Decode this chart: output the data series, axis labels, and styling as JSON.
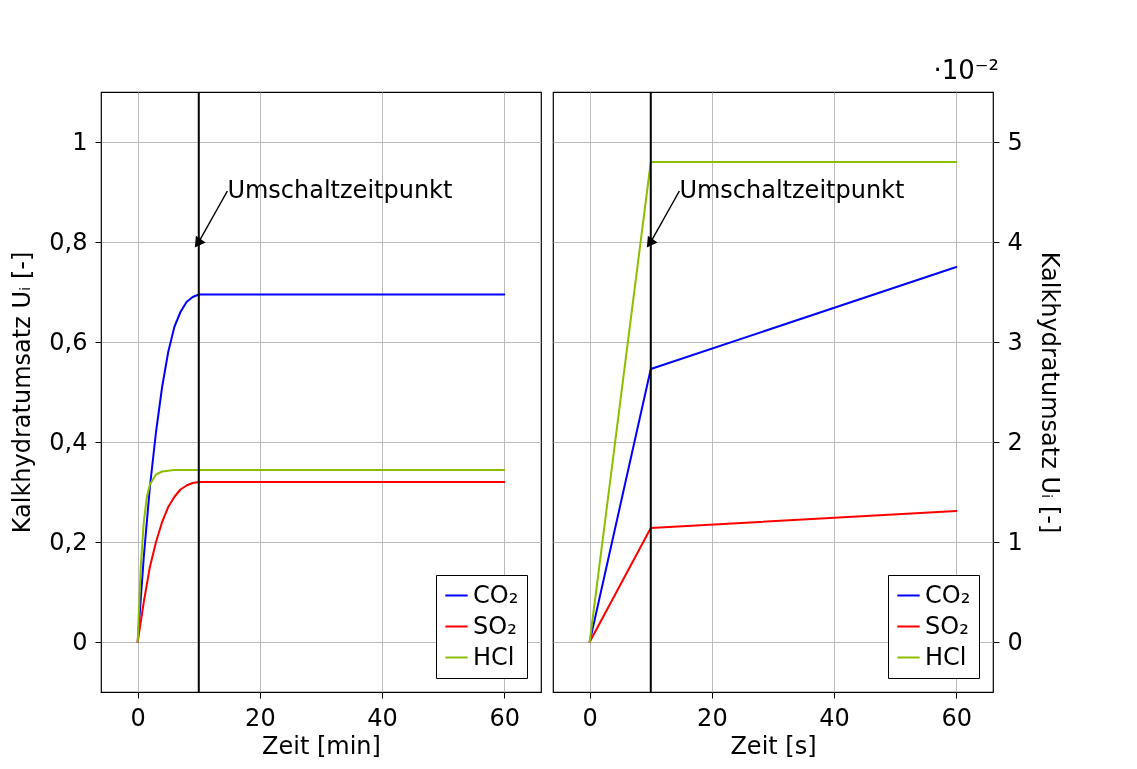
{
  "chart_data": [
    {
      "type": "line",
      "xlabel": "Zeit [min]",
      "ylabel": "Kalkhydratumsatz Uᵢ [-]",
      "xlim": [
        -6,
        66
      ],
      "xticks": [
        0,
        20,
        40,
        60
      ],
      "ylim": [
        -0.1,
        1.1
      ],
      "yticks": [
        {
          "value": 0,
          "label": "0"
        },
        {
          "value": 0.2,
          "label": "0,2"
        },
        {
          "value": 0.4,
          "label": "0,4"
        },
        {
          "value": 0.6,
          "label": "0,6"
        },
        {
          "value": 0.8,
          "label": "0,8"
        },
        {
          "value": 1,
          "label": "1"
        }
      ],
      "grid": true,
      "legend": "bottom right",
      "line_style": "solid",
      "series": [
        {
          "name": "CO₂",
          "color": "#0000ff",
          "x": [
            0,
            1,
            2,
            3,
            4,
            5,
            6,
            7,
            8,
            9,
            10,
            60
          ],
          "values": [
            0,
            0.17,
            0.31,
            0.42,
            0.51,
            0.58,
            0.63,
            0.66,
            0.68,
            0.69,
            0.695,
            0.695
          ]
        },
        {
          "name": "SO₂",
          "color": "#ff0000",
          "x": [
            0,
            1,
            2,
            3,
            4,
            5,
            6,
            7,
            8,
            9,
            10,
            60
          ],
          "values": [
            0,
            0.08,
            0.15,
            0.2,
            0.24,
            0.27,
            0.29,
            0.305,
            0.313,
            0.318,
            0.32,
            0.32
          ]
        },
        {
          "name": "HCl",
          "color": "#8cbf00",
          "x": [
            0,
            0.5,
            1,
            1.5,
            2,
            3,
            4,
            6,
            10,
            60
          ],
          "values": [
            0,
            0.15,
            0.24,
            0.29,
            0.315,
            0.335,
            0.341,
            0.344,
            0.344,
            0.344
          ]
        }
      ],
      "ref_lines": [
        {
          "axis": "x",
          "value": 10,
          "color": "#000000",
          "label": "Umschaltzeitpunkt"
        }
      ]
    },
    {
      "type": "line",
      "xlabel": "Zeit [s]",
      "y2label": "Kalkhydratumsatz Uᵢ [-]",
      "xlim": [
        -6,
        66
      ],
      "xticks": [
        0,
        20,
        40,
        60
      ],
      "y2lim": [
        -0.5,
        5.5
      ],
      "y2ticks": [
        0,
        1,
        2,
        3,
        4,
        5
      ],
      "grid": true,
      "legend": "bottom right",
      "line_style": "solid",
      "series": [
        {
          "name": "CO₂",
          "color": "#0000ff",
          "axis": "y2",
          "x": [
            0,
            10,
            60
          ],
          "values": [
            0,
            2.73,
            3.75
          ]
        },
        {
          "name": "SO₂",
          "color": "#ff0000",
          "axis": "y2",
          "x": [
            0,
            10,
            60
          ],
          "values": [
            0,
            1.14,
            1.31
          ]
        },
        {
          "name": "HCl",
          "color": "#8cbf00",
          "axis": "y2",
          "x": [
            0,
            10,
            60
          ],
          "values": [
            0,
            4.8,
            4.8
          ]
        }
      ],
      "ref_lines": [
        {
          "axis": "x",
          "value": 10,
          "color": "#000000",
          "label": "Umschaltzeitpunkt"
        }
      ],
      "annotations": [
        "·10⁻²"
      ]
    }
  ]
}
